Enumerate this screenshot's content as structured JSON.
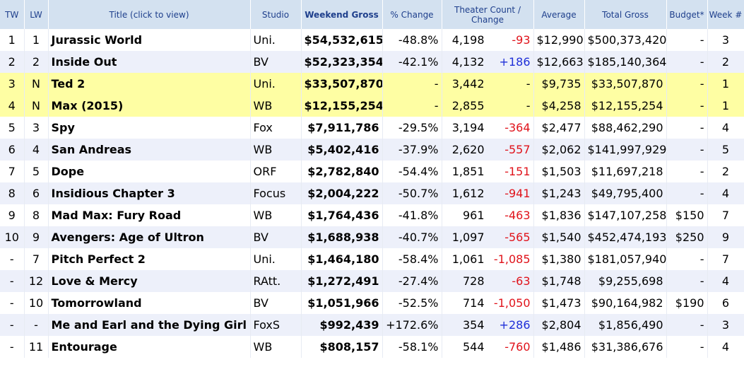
{
  "headers": {
    "tw": "TW",
    "lw": "LW",
    "title": "Title (click to view)",
    "studio": "Studio",
    "weekend_gross": "Weekend Gross",
    "pct_change": "% Change",
    "theater_count": "Theater Count / Change",
    "average": "Average",
    "total_gross": "Total Gross",
    "budget": "Budget*",
    "week": "Week #"
  },
  "rows": [
    {
      "tw": "1",
      "lw": "1",
      "title": "Jurassic World",
      "studio": "Uni.",
      "weekend_gross": "$54,532,615",
      "pct_change": "-48.8%",
      "theaters": "4,198",
      "theater_change": "-93",
      "average": "$12,990",
      "total_gross": "$500,373,420",
      "budget": "-",
      "week": "3",
      "highlight": false
    },
    {
      "tw": "2",
      "lw": "2",
      "title": "Inside Out",
      "studio": "BV",
      "weekend_gross": "$52,323,354",
      "pct_change": "-42.1%",
      "theaters": "4,132",
      "theater_change": "+186",
      "average": "$12,663",
      "total_gross": "$185,140,364",
      "budget": "-",
      "week": "2",
      "highlight": false
    },
    {
      "tw": "3",
      "lw": "N",
      "title": "Ted 2",
      "studio": "Uni.",
      "weekend_gross": "$33,507,870",
      "pct_change": "-",
      "theaters": "3,442",
      "theater_change": "-",
      "average": "$9,735",
      "total_gross": "$33,507,870",
      "budget": "-",
      "week": "1",
      "highlight": true
    },
    {
      "tw": "4",
      "lw": "N",
      "title": "Max (2015)",
      "studio": "WB",
      "weekend_gross": "$12,155,254",
      "pct_change": "-",
      "theaters": "2,855",
      "theater_change": "-",
      "average": "$4,258",
      "total_gross": "$12,155,254",
      "budget": "-",
      "week": "1",
      "highlight": true
    },
    {
      "tw": "5",
      "lw": "3",
      "title": "Spy",
      "studio": "Fox",
      "weekend_gross": "$7,911,786",
      "pct_change": "-29.5%",
      "theaters": "3,194",
      "theater_change": "-364",
      "average": "$2,477",
      "total_gross": "$88,462,290",
      "budget": "-",
      "week": "4",
      "highlight": false
    },
    {
      "tw": "6",
      "lw": "4",
      "title": "San Andreas",
      "studio": "WB",
      "weekend_gross": "$5,402,416",
      "pct_change": "-37.9%",
      "theaters": "2,620",
      "theater_change": "-557",
      "average": "$2,062",
      "total_gross": "$141,997,929",
      "budget": "-",
      "week": "5",
      "highlight": false
    },
    {
      "tw": "7",
      "lw": "5",
      "title": "Dope",
      "studio": "ORF",
      "weekend_gross": "$2,782,840",
      "pct_change": "-54.4%",
      "theaters": "1,851",
      "theater_change": "-151",
      "average": "$1,503",
      "total_gross": "$11,697,218",
      "budget": "-",
      "week": "2",
      "highlight": false
    },
    {
      "tw": "8",
      "lw": "6",
      "title": "Insidious Chapter 3",
      "studio": "Focus",
      "weekend_gross": "$2,004,222",
      "pct_change": "-50.7%",
      "theaters": "1,612",
      "theater_change": "-941",
      "average": "$1,243",
      "total_gross": "$49,795,400",
      "budget": "-",
      "week": "4",
      "highlight": false
    },
    {
      "tw": "9",
      "lw": "8",
      "title": "Mad Max: Fury Road",
      "studio": "WB",
      "weekend_gross": "$1,764,436",
      "pct_change": "-41.8%",
      "theaters": "961",
      "theater_change": "-463",
      "average": "$1,836",
      "total_gross": "$147,107,258",
      "budget": "$150",
      "week": "7",
      "highlight": false
    },
    {
      "tw": "10",
      "lw": "9",
      "title": "Avengers: Age of Ultron",
      "studio": "BV",
      "weekend_gross": "$1,688,938",
      "pct_change": "-40.7%",
      "theaters": "1,097",
      "theater_change": "-565",
      "average": "$1,540",
      "total_gross": "$452,474,193",
      "budget": "$250",
      "week": "9",
      "highlight": false
    },
    {
      "tw": "-",
      "lw": "7",
      "title": "Pitch Perfect 2",
      "studio": "Uni.",
      "weekend_gross": "$1,464,180",
      "pct_change": "-58.4%",
      "theaters": "1,061",
      "theater_change": "-1,085",
      "average": "$1,380",
      "total_gross": "$181,057,940",
      "budget": "-",
      "week": "7",
      "highlight": false
    },
    {
      "tw": "-",
      "lw": "12",
      "title": "Love & Mercy",
      "studio": "RAtt.",
      "weekend_gross": "$1,272,491",
      "pct_change": "-27.4%",
      "theaters": "728",
      "theater_change": "-63",
      "average": "$1,748",
      "total_gross": "$9,255,698",
      "budget": "-",
      "week": "4",
      "highlight": false
    },
    {
      "tw": "-",
      "lw": "10",
      "title": "Tomorrowland",
      "studio": "BV",
      "weekend_gross": "$1,051,966",
      "pct_change": "-52.5%",
      "theaters": "714",
      "theater_change": "-1,050",
      "average": "$1,473",
      "total_gross": "$90,164,982",
      "budget": "$190",
      "week": "6",
      "highlight": false
    },
    {
      "tw": "-",
      "lw": "-",
      "title": "Me and Earl and the Dying Girl",
      "studio": "FoxS",
      "weekend_gross": "$992,439",
      "pct_change": "+172.6%",
      "theaters": "354",
      "theater_change": "+286",
      "average": "$2,804",
      "total_gross": "$1,856,490",
      "budget": "-",
      "week": "3",
      "highlight": false
    },
    {
      "tw": "-",
      "lw": "11",
      "title": "Entourage",
      "studio": "WB",
      "weekend_gross": "$808,157",
      "pct_change": "-58.1%",
      "theaters": "544",
      "theater_change": "-760",
      "average": "$1,486",
      "total_gross": "$31,386,676",
      "budget": "-",
      "week": "4",
      "highlight": false
    }
  ],
  "colors": {
    "header_bg": "#d3e1f0",
    "header_text": "#1e3f8c",
    "highlight_row": "#fefea3",
    "alt_row": "#edf0fa",
    "link_text": "#1a1c8c",
    "negative": "#e0131b",
    "positive": "#1f2fd8"
  }
}
